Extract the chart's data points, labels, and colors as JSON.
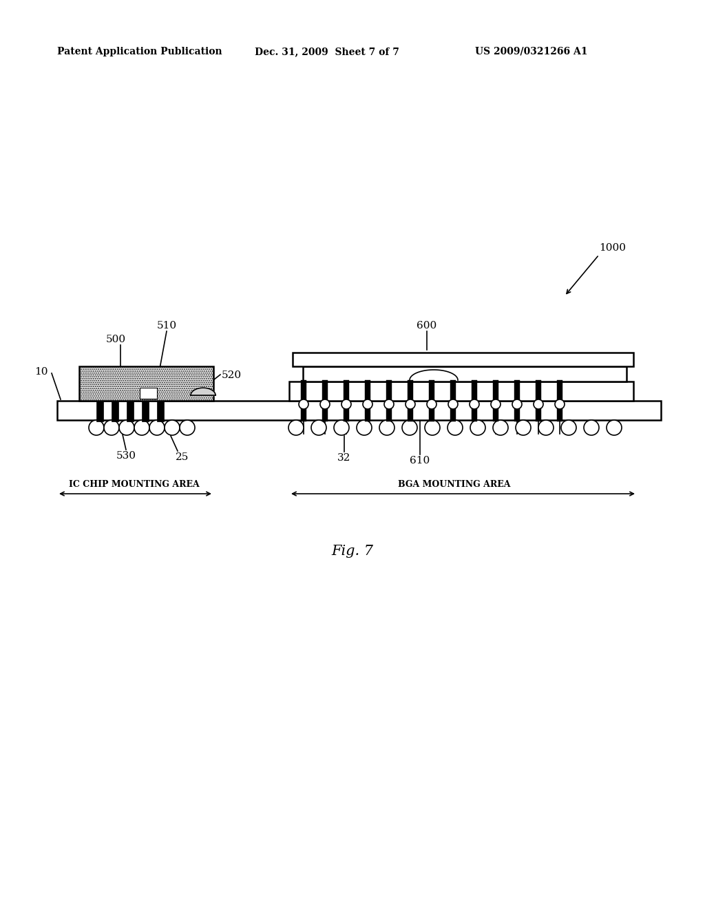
{
  "background_color": "#ffffff",
  "header_left": "Patent Application Publication",
  "header_center": "Dec. 31, 2009  Sheet 7 of 7",
  "header_right": "US 2009/0321266 A1",
  "fig_label": "Fig. 7",
  "label_1000": "1000",
  "label_10": "10",
  "label_500": "500",
  "label_510": "510",
  "label_520": "520",
  "label_530": "530",
  "label_25": "25",
  "label_600": "600",
  "label_32": "32",
  "label_610": "610",
  "ic_area_text": "IC CHIP MOUNTING AREA",
  "bga_area_text": "BGA MOUNTING AREA",
  "line_color": "#000000"
}
